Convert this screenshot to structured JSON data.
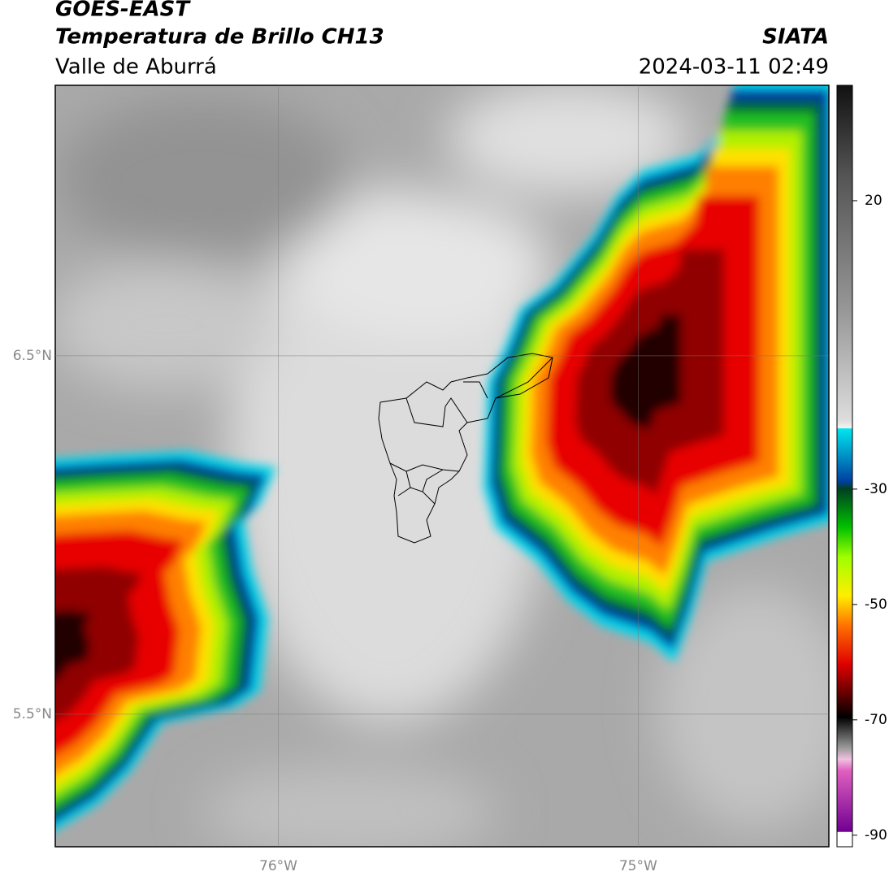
{
  "header": {
    "title": "GOES-EAST",
    "subtitle": "Temperatura de Brillo CH13",
    "region": "Valle de Aburrá",
    "source": "SIATA",
    "timestamp": "2024-03-11 02:49"
  },
  "map": {
    "lat_lim": [
      5.13,
      7.255
    ],
    "lon_lim": [
      -76.62,
      -74.47
    ],
    "lat_ticks": [
      {
        "value": 6.5,
        "label": "6.5°N"
      },
      {
        "value": 5.5,
        "label": "5.5°N"
      }
    ],
    "lon_ticks": [
      {
        "value": -76,
        "label": "76°W"
      },
      {
        "value": -75,
        "label": "75°W"
      }
    ]
  },
  "colorbar": {
    "lim": [
      -92,
      40
    ],
    "ticks": [
      20,
      -30,
      -50,
      -70,
      -90
    ]
  }
}
